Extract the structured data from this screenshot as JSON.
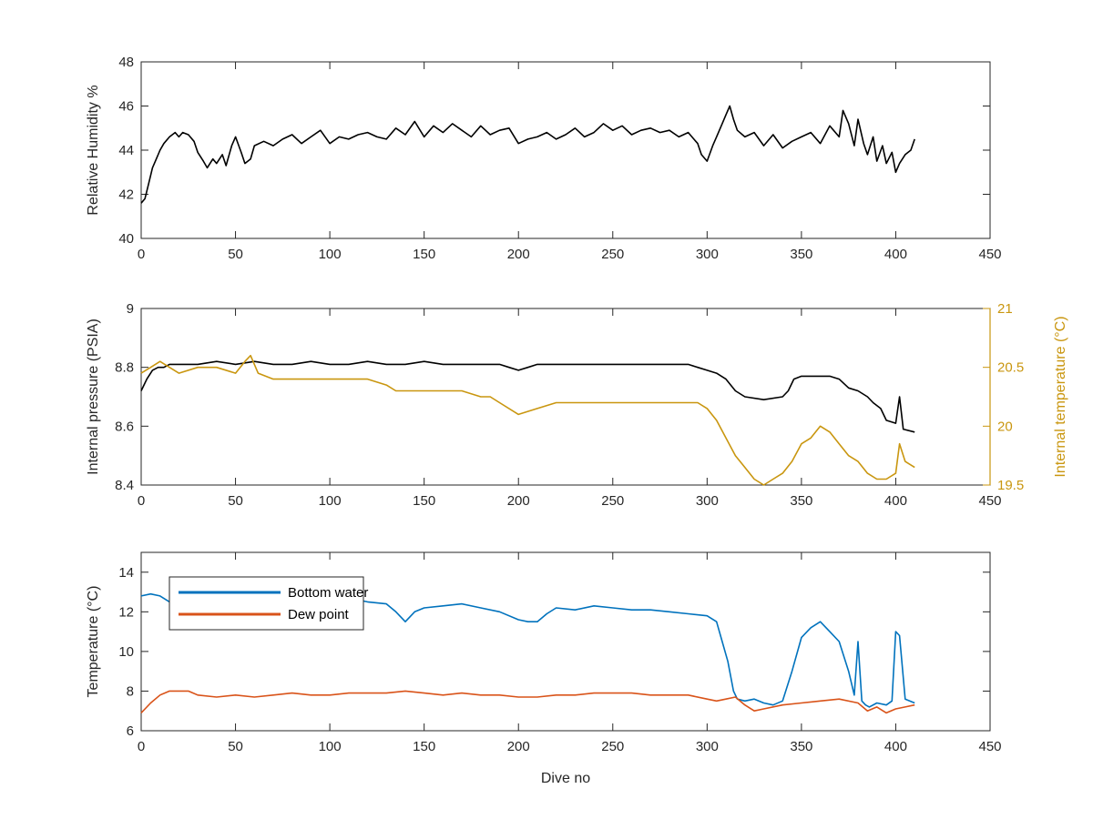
{
  "chart_data": [
    {
      "type": "line",
      "id": "humidity",
      "xlabel": "",
      "ylabel": "Relative Humidity %",
      "xlim": [
        0,
        450
      ],
      "ylim": [
        40,
        48
      ],
      "xticks": [
        0,
        50,
        100,
        150,
        200,
        250,
        300,
        350,
        400,
        450
      ],
      "yticks": [
        40,
        42,
        44,
        46,
        48
      ],
      "grid": false,
      "series": [
        {
          "color": "#000000",
          "axis": "left",
          "x": [
            0,
            2,
            4,
            6,
            8,
            10,
            12,
            15,
            18,
            20,
            22,
            25,
            28,
            30,
            33,
            35,
            38,
            40,
            43,
            45,
            48,
            50,
            53,
            55,
            58,
            60,
            65,
            70,
            75,
            80,
            85,
            90,
            95,
            100,
            105,
            110,
            115,
            120,
            125,
            130,
            135,
            140,
            145,
            150,
            155,
            160,
            165,
            170,
            175,
            180,
            185,
            190,
            195,
            200,
            205,
            210,
            215,
            220,
            225,
            230,
            235,
            240,
            245,
            250,
            255,
            260,
            265,
            270,
            275,
            280,
            285,
            290,
            293,
            295,
            297,
            300,
            303,
            305,
            308,
            310,
            312,
            314,
            316,
            320,
            325,
            330,
            335,
            340,
            345,
            350,
            355,
            360,
            365,
            370,
            372,
            375,
            378,
            380,
            383,
            385,
            388,
            390,
            393,
            395,
            398,
            400,
            402,
            405,
            408,
            410
          ],
          "y": [
            41.6,
            41.8,
            42.5,
            43.2,
            43.6,
            44.0,
            44.3,
            44.6,
            44.8,
            44.6,
            44.8,
            44.7,
            44.4,
            43.9,
            43.5,
            43.2,
            43.6,
            43.4,
            43.8,
            43.3,
            44.2,
            44.6,
            43.9,
            43.4,
            43.6,
            44.2,
            44.4,
            44.2,
            44.5,
            44.7,
            44.3,
            44.6,
            44.9,
            44.3,
            44.6,
            44.5,
            44.7,
            44.8,
            44.6,
            44.5,
            45.0,
            44.7,
            45.3,
            44.6,
            45.1,
            44.8,
            45.2,
            44.9,
            44.6,
            45.1,
            44.7,
            44.9,
            45.0,
            44.3,
            44.5,
            44.6,
            44.8,
            44.5,
            44.7,
            45.0,
            44.6,
            44.8,
            45.2,
            44.9,
            45.1,
            44.7,
            44.9,
            45.0,
            44.8,
            44.9,
            44.6,
            44.8,
            44.5,
            44.3,
            43.8,
            43.5,
            44.2,
            44.6,
            45.2,
            45.6,
            46.0,
            45.4,
            44.9,
            44.6,
            44.8,
            44.2,
            44.7,
            44.1,
            44.4,
            44.6,
            44.8,
            44.3,
            45.1,
            44.6,
            45.8,
            45.2,
            44.2,
            45.4,
            44.3,
            43.8,
            44.6,
            43.5,
            44.2,
            43.4,
            43.9,
            43.0,
            43.4,
            43.8,
            44.0,
            44.5
          ]
        }
      ]
    },
    {
      "type": "line",
      "id": "pressure-temperature",
      "xlabel": "",
      "ylabel": "Internal pressure (PSIA)",
      "ylabel_right": "Internal temperature (°C)",
      "xlim": [
        0,
        450
      ],
      "ylim": [
        8.4,
        9
      ],
      "ylim_right": [
        19.5,
        21
      ],
      "xticks": [
        0,
        50,
        100,
        150,
        200,
        250,
        300,
        350,
        400,
        450
      ],
      "yticks": [
        8.4,
        8.6,
        8.8,
        9
      ],
      "yticks_right": [
        19.5,
        20,
        20.5,
        21
      ],
      "ytick_labels_right": [
        "19.5",
        "20",
        "20.5",
        "21"
      ],
      "grid": false,
      "series": [
        {
          "color": "#000000",
          "axis": "left",
          "x": [
            0,
            3,
            6,
            9,
            12,
            15,
            20,
            30,
            40,
            50,
            60,
            70,
            80,
            90,
            100,
            110,
            120,
            130,
            140,
            150,
            160,
            170,
            180,
            190,
            195,
            200,
            205,
            210,
            220,
            230,
            240,
            250,
            260,
            270,
            280,
            290,
            295,
            300,
            305,
            310,
            315,
            320,
            330,
            340,
            343,
            346,
            350,
            355,
            360,
            365,
            370,
            375,
            380,
            385,
            388,
            392,
            395,
            400,
            402,
            404,
            410
          ],
          "y": [
            8.72,
            8.76,
            8.79,
            8.8,
            8.8,
            8.81,
            8.81,
            8.81,
            8.82,
            8.81,
            8.82,
            8.81,
            8.81,
            8.82,
            8.81,
            8.81,
            8.82,
            8.81,
            8.81,
            8.82,
            8.81,
            8.81,
            8.81,
            8.81,
            8.8,
            8.79,
            8.8,
            8.81,
            8.81,
            8.81,
            8.81,
            8.81,
            8.81,
            8.81,
            8.81,
            8.81,
            8.8,
            8.79,
            8.78,
            8.76,
            8.72,
            8.7,
            8.69,
            8.7,
            8.72,
            8.76,
            8.77,
            8.77,
            8.77,
            8.77,
            8.76,
            8.73,
            8.72,
            8.7,
            8.68,
            8.66,
            8.62,
            8.61,
            8.7,
            8.59,
            8.58
          ]
        },
        {
          "color": "#C9960F",
          "axis": "right",
          "x": [
            0,
            5,
            10,
            15,
            20,
            30,
            40,
            50,
            55,
            58,
            62,
            70,
            80,
            90,
            100,
            120,
            130,
            135,
            140,
            150,
            160,
            170,
            180,
            185,
            190,
            200,
            210,
            220,
            230,
            240,
            250,
            260,
            270,
            280,
            290,
            295,
            300,
            305,
            310,
            315,
            320,
            325,
            330,
            335,
            340,
            345,
            350,
            355,
            360,
            365,
            370,
            375,
            380,
            385,
            390,
            395,
            400,
            402,
            405,
            410
          ],
          "y": [
            20.45,
            20.5,
            20.55,
            20.5,
            20.45,
            20.5,
            20.5,
            20.45,
            20.55,
            20.6,
            20.45,
            20.4,
            20.4,
            20.4,
            20.4,
            20.4,
            20.35,
            20.3,
            20.3,
            20.3,
            20.3,
            20.3,
            20.25,
            20.25,
            20.2,
            20.1,
            20.15,
            20.2,
            20.2,
            20.2,
            20.2,
            20.2,
            20.2,
            20.2,
            20.2,
            20.2,
            20.15,
            20.05,
            19.9,
            19.75,
            19.65,
            19.55,
            19.5,
            19.55,
            19.6,
            19.7,
            19.85,
            19.9,
            20.0,
            19.95,
            19.85,
            19.75,
            19.7,
            19.6,
            19.55,
            19.55,
            19.6,
            19.85,
            19.7,
            19.65
          ]
        }
      ]
    },
    {
      "type": "line",
      "id": "temperature",
      "xlabel": "Dive no",
      "ylabel": "Temperature (°C)",
      "xlim": [
        0,
        450
      ],
      "ylim": [
        6,
        15
      ],
      "xticks": [
        0,
        50,
        100,
        150,
        200,
        250,
        300,
        350,
        400,
        450
      ],
      "yticks": [
        6,
        8,
        10,
        12,
        14
      ],
      "grid": false,
      "legend": "top-left",
      "series": [
        {
          "name": "Bottom water",
          "color": "#0072BD",
          "x": [
            0,
            5,
            10,
            15,
            20,
            30,
            40,
            50,
            60,
            70,
            80,
            90,
            100,
            110,
            120,
            130,
            135,
            140,
            145,
            150,
            160,
            170,
            180,
            190,
            200,
            205,
            210,
            215,
            220,
            230,
            240,
            250,
            260,
            270,
            280,
            290,
            300,
            305,
            308,
            311,
            314,
            316,
            320,
            325,
            330,
            335,
            340,
            345,
            350,
            355,
            360,
            365,
            370,
            375,
            378,
            380,
            382,
            384,
            386,
            390,
            395,
            398,
            400,
            402,
            405,
            410
          ],
          "y": [
            12.8,
            12.9,
            12.8,
            12.5,
            12.7,
            12.6,
            12.5,
            12.6,
            12.5,
            12.7,
            12.6,
            12.5,
            12.6,
            12.7,
            12.5,
            12.4,
            12.0,
            11.5,
            12.0,
            12.2,
            12.3,
            12.4,
            12.2,
            12.0,
            11.6,
            11.5,
            11.5,
            11.9,
            12.2,
            12.1,
            12.3,
            12.2,
            12.1,
            12.1,
            12.0,
            11.9,
            11.8,
            11.5,
            10.5,
            9.5,
            8.0,
            7.6,
            7.5,
            7.6,
            7.4,
            7.3,
            7.5,
            9.0,
            10.7,
            11.2,
            11.5,
            11.0,
            10.5,
            9.0,
            7.8,
            10.5,
            7.5,
            7.3,
            7.2,
            7.4,
            7.3,
            7.5,
            11.0,
            10.8,
            7.6,
            7.4
          ]
        },
        {
          "name": "Dew point",
          "color": "#D95319",
          "x": [
            0,
            5,
            10,
            15,
            20,
            25,
            30,
            40,
            50,
            60,
            70,
            80,
            90,
            100,
            110,
            120,
            130,
            140,
            150,
            160,
            170,
            180,
            190,
            200,
            210,
            220,
            230,
            240,
            250,
            260,
            270,
            280,
            290,
            300,
            305,
            310,
            315,
            320,
            325,
            330,
            340,
            350,
            360,
            370,
            380,
            385,
            390,
            395,
            400,
            405,
            410
          ],
          "y": [
            6.9,
            7.4,
            7.8,
            8.0,
            8.0,
            8.0,
            7.8,
            7.7,
            7.8,
            7.7,
            7.8,
            7.9,
            7.8,
            7.8,
            7.9,
            7.9,
            7.9,
            8.0,
            7.9,
            7.8,
            7.9,
            7.8,
            7.8,
            7.7,
            7.7,
            7.8,
            7.8,
            7.9,
            7.9,
            7.9,
            7.8,
            7.8,
            7.8,
            7.6,
            7.5,
            7.6,
            7.7,
            7.3,
            7.0,
            7.1,
            7.3,
            7.4,
            7.5,
            7.6,
            7.4,
            7.0,
            7.2,
            6.9,
            7.1,
            7.2,
            7.3
          ]
        }
      ]
    }
  ]
}
